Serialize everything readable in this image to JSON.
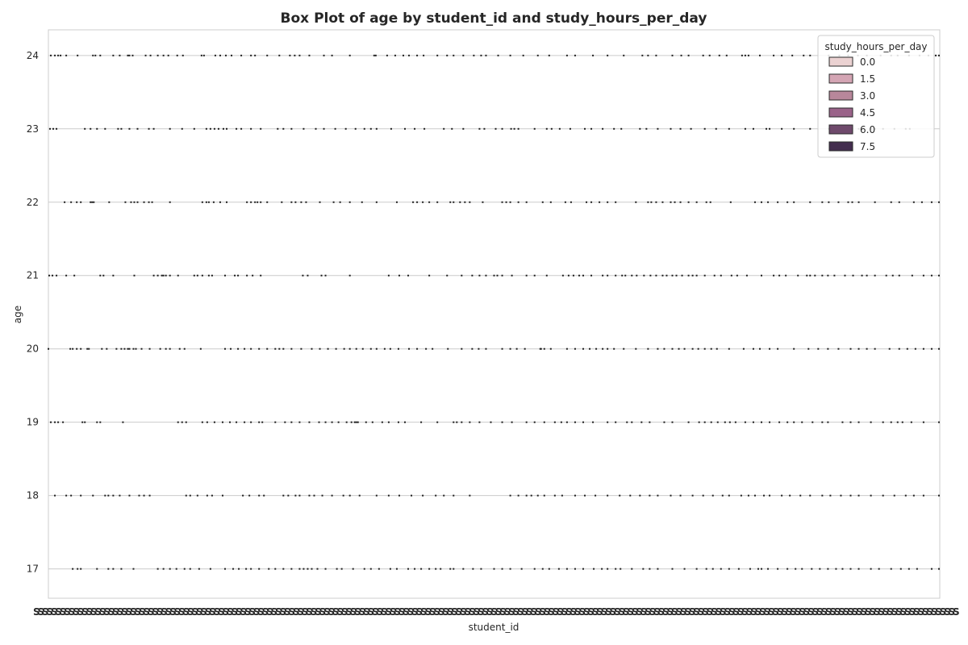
{
  "chart_data": {
    "type": "box",
    "title": "Box Plot of age by student_id and study_hours_per_day",
    "xlabel": "student_id",
    "ylabel": "age",
    "y_ticks": [
      17,
      18,
      19,
      20,
      21,
      22,
      23,
      24
    ],
    "ylim": [
      16.6,
      24.35
    ],
    "grid": true,
    "legend": {
      "title": "study_hours_per_day",
      "placement": "top-right",
      "entries": [
        {
          "label": "0.0",
          "color": "#ebd2d2"
        },
        {
          "label": "1.5",
          "color": "#d4a5b4"
        },
        {
          "label": "3.0",
          "color": "#b8879b"
        },
        {
          "label": "4.5",
          "color": "#9a6389"
        },
        {
          "label": "6.0",
          "color": "#6f4a6c"
        },
        {
          "label": "7.5",
          "color": "#432d4f"
        }
      ]
    },
    "x_tick_label_sample": "S",
    "series": [
      {
        "age": 24,
        "x": [
          3,
          8,
          12,
          15,
          22,
          36,
          55,
          58,
          64,
          80,
          88,
          98,
          100,
          104,
          120,
          126,
          135,
          142,
          148,
          159,
          166,
          189,
          192,
          206,
          212,
          219,
          226,
          238,
          250,
          255,
          270,
          285,
          298,
          304,
          310,
          322,
          340,
          350,
          372,
          402,
          404,
          418,
          428,
          438,
          445,
          455,
          463,
          480,
          492,
          500,
          512,
          525,
          534,
          540,
          555,
          570,
          586,
          604,
          618,
          640,
          650,
          672,
          690,
          710,
          733,
          740,
          750,
          770,
          781,
          790,
          808,
          816,
          828,
          837,
          856,
          860,
          864,
          878,
          895,
          905,
          918,
          932,
          940,
          963,
          976,
          987,
          999,
          1010,
          1027,
          1040,
          1048,
          1062,
          1075,
          1086,
          1095,
          1099
        ]
      },
      {
        "age": 23,
        "x": [
          2,
          6,
          10,
          45,
          52,
          60,
          70,
          86,
          90,
          100,
          110,
          124,
          130,
          150,
          165,
          180,
          195,
          200,
          205,
          210,
          216,
          220,
          232,
          238,
          250,
          262,
          283,
          290,
          300,
          315,
          330,
          340,
          354,
          367,
          379,
          390,
          398,
          405,
          423,
          440,
          452,
          464,
          488,
          498,
          512,
          532,
          538,
          552,
          560,
          571,
          575,
          580,
          600,
          615,
          621,
          631,
          644,
          662,
          670,
          684,
          698,
          707,
          730,
          738,
          752,
          768,
          780,
          793,
          810,
          824,
          840,
          860,
          870,
          886,
          890,
          905,
          920,
          940,
          963,
          970,
          983,
          1000,
          1015,
          1020,
          1030,
          1044,
          1058,
          1063
        ]
      },
      {
        "age": 22,
        "x": [
          20,
          28,
          35,
          40,
          52,
          54,
          56,
          75,
          95,
          102,
          106,
          110,
          118,
          124,
          128,
          150,
          190,
          195,
          198,
          204,
          212,
          220,
          245,
          250,
          255,
          258,
          262,
          270,
          288,
          300,
          305,
          312,
          318,
          335,
          352,
          360,
          372,
          387,
          405,
          430,
          450,
          455,
          462,
          470,
          480,
          496,
          500,
          508,
          514,
          520,
          536,
          560,
          565,
          570,
          580,
          590,
          610,
          620,
          638,
          645,
          664,
          670,
          680,
          690,
          700,
          725,
          740,
          744,
          750,
          758,
          768,
          773,
          780,
          790,
          800,
          812,
          817,
          842,
          872,
          880,
          888,
          900,
          912,
          920,
          940,
          955,
          963,
          975,
          987,
          992,
          1000,
          1020,
          1040,
          1050,
          1068,
          1078,
          1090,
          1099
        ]
      },
      {
        "age": 21,
        "x": [
          1,
          5,
          10,
          22,
          32,
          64,
          68,
          80,
          106,
          130,
          135,
          140,
          142,
          145,
          150,
          160,
          180,
          184,
          190,
          198,
          202,
          218,
          230,
          234,
          245,
          252,
          262,
          314,
          320,
          337,
          342,
          372,
          420,
          433,
          444,
          470,
          492,
          510,
          523,
          532,
          540,
          550,
          554,
          560,
          572,
          590,
          600,
          615,
          635,
          642,
          648,
          655,
          660,
          670,
          684,
          690,
          700,
          708,
          712,
          720,
          726,
          735,
          743,
          750,
          758,
          763,
          770,
          775,
          782,
          790,
          795,
          800,
          810,
          822,
          830,
          843,
          850,
          862,
          880,
          895,
          902,
          910,
          925,
          936,
          940,
          946,
          955,
          962,
          970,
          983,
          993,
          1004,
          1010,
          1020,
          1034,
          1042,
          1050,
          1066,
          1080,
          1090,
          1099
        ]
      },
      {
        "age": 20,
        "x": [
          0,
          27,
          30,
          35,
          40,
          48,
          50,
          66,
          72,
          84,
          90,
          94,
          98,
          100,
          105,
          108,
          115,
          125,
          138,
          145,
          150,
          162,
          168,
          188,
          218,
          225,
          234,
          242,
          250,
          260,
          270,
          280,
          285,
          290,
          300,
          312,
          325,
          335,
          345,
          355,
          365,
          372,
          380,
          388,
          398,
          405,
          415,
          422,
          432,
          445,
          455,
          466,
          474,
          493,
          510,
          523,
          531,
          540,
          560,
          570,
          578,
          588,
          607,
          608,
          612,
          620,
          640,
          650,
          660,
          668,
          676,
          684,
          690,
          698,
          710,
          725,
          740,
          752,
          760,
          770,
          778,
          785,
          795,
          802,
          810,
          818,
          825,
          840,
          858,
          870,
          878,
          890,
          900,
          920,
          938,
          950,
          962,
          975,
          990,
          1000,
          1010,
          1020,
          1038,
          1050,
          1060,
          1070,
          1080,
          1090,
          1099
        ]
      },
      {
        "age": 19,
        "x": [
          3,
          8,
          12,
          18,
          42,
          45,
          60,
          64,
          92,
          160,
          165,
          170,
          190,
          196,
          205,
          215,
          224,
          232,
          242,
          250,
          260,
          264,
          280,
          292,
          300,
          310,
          322,
          334,
          342,
          350,
          358,
          368,
          374,
          378,
          380,
          382,
          392,
          400,
          412,
          420,
          432,
          440,
          460,
          480,
          500,
          504,
          510,
          520,
          532,
          546,
          560,
          572,
          590,
          600,
          612,
          625,
          633,
          640,
          650,
          660,
          672,
          690,
          700,
          714,
          720,
          732,
          742,
          760,
          770,
          790,
          803,
          810,
          818,
          826,
          835,
          841,
          848,
          860,
          870,
          880,
          890,
          902,
          912,
          920,
          930,
          943,
          955,
          962,
          980,
          990,
          1000,
          1015,
          1030,
          1040,
          1048,
          1054,
          1065,
          1080,
          1099
        ]
      },
      {
        "age": 18,
        "x": [
          8,
          22,
          28,
          40,
          55,
          70,
          74,
          80,
          88,
          100,
          112,
          118,
          125,
          170,
          175,
          184,
          196,
          202,
          215,
          240,
          248,
          260,
          266,
          290,
          296,
          305,
          310,
          322,
          328,
          338,
          350,
          364,
          372,
          384,
          405,
          420,
          433,
          448,
          462,
          478,
          488,
          500,
          520,
          570,
          580,
          590,
          596,
          604,
          612,
          625,
          634,
          650,
          662,
          675,
          690,
          705,
          718,
          730,
          742,
          752,
          768,
          780,
          795,
          808,
          820,
          832,
          840,
          855,
          864,
          872,
          883,
          890,
          905,
          915,
          928,
          940,
          955,
          965,
          978,
          990,
          1000,
          1015,
          1030,
          1044,
          1058,
          1068,
          1080,
          1099
        ]
      },
      {
        "age": 17,
        "x": [
          30,
          36,
          40,
          60,
          74,
          80,
          90,
          105,
          135,
          142,
          150,
          158,
          168,
          175,
          186,
          200,
          218,
          228,
          235,
          244,
          250,
          260,
          272,
          280,
          290,
          300,
          310,
          315,
          320,
          325,
          332,
          342,
          356,
          362,
          376,
          390,
          398,
          408,
          422,
          430,
          444,
          452,
          460,
          470,
          478,
          484,
          496,
          500,
          512,
          524,
          534,
          550,
          560,
          570,
          584,
          600,
          610,
          618,
          630,
          640,
          650,
          660,
          673,
          683,
          690,
          700,
          706,
          720,
          734,
          742,
          752,
          770,
          785,
          800,
          812,
          820,
          830,
          840,
          852,
          866,
          876,
          880,
          888,
          900,
          912,
          922,
          930,
          942,
          952,
          962,
          972,
          980,
          990,
          1000,
          1015,
          1025,
          1040,
          1052,
          1062,
          1072,
          1090,
          1099
        ]
      }
    ]
  }
}
